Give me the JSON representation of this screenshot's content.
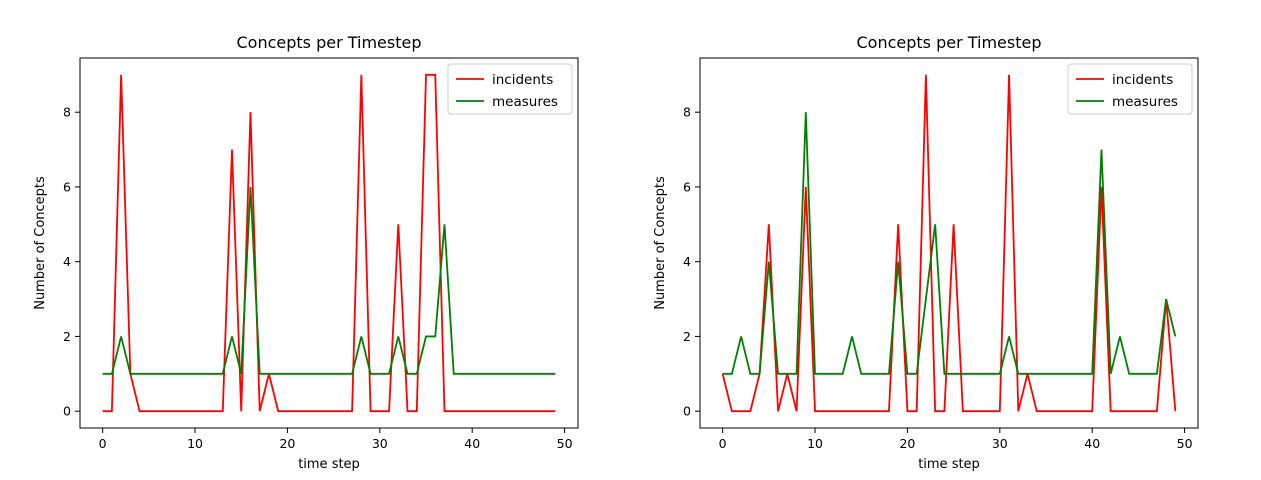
{
  "chart_data": [
    {
      "type": "line",
      "title": "Concepts per Timestep",
      "xlabel": "time step",
      "ylabel": "Number of Concepts",
      "xlim": [
        -2.45,
        51.45
      ],
      "ylim": [
        -0.45,
        9.45
      ],
      "xticks": [
        0,
        10,
        20,
        30,
        40,
        50
      ],
      "yticks": [
        0,
        2,
        4,
        6,
        8
      ],
      "legend_position": "top-right",
      "x": [
        0,
        1,
        2,
        3,
        4,
        5,
        6,
        7,
        8,
        9,
        10,
        11,
        12,
        13,
        14,
        15,
        16,
        17,
        18,
        19,
        20,
        21,
        22,
        23,
        24,
        25,
        26,
        27,
        28,
        29,
        30,
        31,
        32,
        33,
        34,
        35,
        36,
        37,
        38,
        39,
        40,
        41,
        42,
        43,
        44,
        45,
        46,
        47,
        48,
        49
      ],
      "series": [
        {
          "name": "incidents",
          "color": "#ff0000",
          "values": [
            0,
            0,
            9,
            1,
            0,
            0,
            0,
            0,
            0,
            0,
            0,
            0,
            0,
            0,
            7,
            0,
            8,
            0,
            1,
            0,
            0,
            0,
            0,
            0,
            0,
            0,
            0,
            0,
            9,
            0,
            0,
            0,
            5,
            0,
            0,
            9,
            9,
            0,
            0,
            0,
            0,
            0,
            0,
            0,
            0,
            0,
            0,
            0,
            0,
            0
          ]
        },
        {
          "name": "measures",
          "color": "#008000",
          "values": [
            1,
            1,
            2,
            1,
            1,
            1,
            1,
            1,
            1,
            1,
            1,
            1,
            1,
            1,
            2,
            1,
            6,
            1,
            1,
            1,
            1,
            1,
            1,
            1,
            1,
            1,
            1,
            1,
            2,
            1,
            1,
            1,
            2,
            1,
            1,
            2,
            2,
            5,
            1,
            1,
            1,
            1,
            1,
            1,
            1,
            1,
            1,
            1,
            1,
            1
          ]
        }
      ]
    },
    {
      "type": "line",
      "title": "Concepts per Timestep",
      "xlabel": "time step",
      "ylabel": "Number of Concepts",
      "xlim": [
        -2.45,
        51.45
      ],
      "ylim": [
        -0.45,
        9.45
      ],
      "xticks": [
        0,
        10,
        20,
        30,
        40,
        50
      ],
      "yticks": [
        0,
        2,
        4,
        6,
        8
      ],
      "legend_position": "top-right",
      "x": [
        0,
        1,
        2,
        3,
        4,
        5,
        6,
        7,
        8,
        9,
        10,
        11,
        12,
        13,
        14,
        15,
        16,
        17,
        18,
        19,
        20,
        21,
        22,
        23,
        24,
        25,
        26,
        27,
        28,
        29,
        30,
        31,
        32,
        33,
        34,
        35,
        36,
        37,
        38,
        39,
        40,
        41,
        42,
        43,
        44,
        45,
        46,
        47,
        48,
        49
      ],
      "series": [
        {
          "name": "incidents",
          "color": "#ff0000",
          "values": [
            1,
            0,
            0,
            0,
            1,
            5,
            0,
            1,
            0,
            6,
            0,
            0,
            0,
            0,
            0,
            0,
            0,
            0,
            0,
            5,
            0,
            0,
            9,
            0,
            0,
            5,
            0,
            0,
            0,
            0,
            0,
            9,
            0,
            1,
            0,
            0,
            0,
            0,
            0,
            0,
            0,
            6,
            0,
            0,
            0,
            0,
            0,
            0,
            3,
            0
          ]
        },
        {
          "name": "measures",
          "color": "#008000",
          "values": [
            1,
            1,
            2,
            1,
            1,
            4,
            1,
            1,
            1,
            8,
            1,
            1,
            1,
            1,
            2,
            1,
            1,
            1,
            1,
            4,
            1,
            1,
            3,
            5,
            1,
            1,
            1,
            1,
            1,
            1,
            1,
            2,
            1,
            1,
            1,
            1,
            1,
            1,
            1,
            1,
            1,
            7,
            1,
            2,
            1,
            1,
            1,
            1,
            3,
            2
          ]
        }
      ]
    }
  ]
}
